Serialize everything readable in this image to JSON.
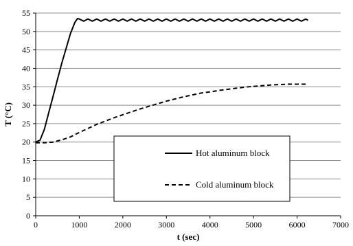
{
  "chart_data": {
    "type": "line",
    "title": "",
    "xlabel": "t (sec)",
    "ylabel": "T (°C)",
    "xlim": [
      0,
      7000
    ],
    "ylim": [
      0,
      55
    ],
    "xticks": [
      0,
      1000,
      2000,
      3000,
      4000,
      5000,
      6000,
      7000
    ],
    "yticks": [
      0,
      5,
      10,
      15,
      20,
      25,
      30,
      35,
      40,
      45,
      50,
      55
    ],
    "grid": "horizontal",
    "legend": "inside-center-bottom",
    "series": [
      {
        "name": "Hot aluminum block",
        "style": "solid",
        "color": "#000000",
        "x": [
          0,
          100,
          200,
          300,
          400,
          500,
          600,
          700,
          800,
          900,
          960,
          1000,
          1100,
          1200,
          1300,
          1400,
          1500,
          1600,
          1700,
          1800,
          1900,
          2000,
          2100,
          2200,
          2300,
          2400,
          2500,
          2600,
          2700,
          2800,
          2900,
          3000,
          3100,
          3200,
          3300,
          3400,
          3500,
          3600,
          3700,
          3800,
          3900,
          4000,
          4100,
          4200,
          4300,
          4400,
          4500,
          4600,
          4700,
          4800,
          4900,
          5000,
          5100,
          5200,
          5300,
          5400,
          5500,
          5600,
          5700,
          5800,
          5900,
          6000,
          6100,
          6200,
          6250
        ],
        "y": [
          20,
          20.5,
          23.5,
          28,
          32.5,
          37,
          41.5,
          45.5,
          49.5,
          52.5,
          53.5,
          53.4,
          52.8,
          53.4,
          52.8,
          53.4,
          52.8,
          53.4,
          52.8,
          53.4,
          52.8,
          53.4,
          52.8,
          53.4,
          52.8,
          53.4,
          52.8,
          53.4,
          52.8,
          53.4,
          52.8,
          53.4,
          52.8,
          53.4,
          52.8,
          53.4,
          52.8,
          53.4,
          52.8,
          53.4,
          52.8,
          53.4,
          52.8,
          53.4,
          52.8,
          53.4,
          52.8,
          53.4,
          52.8,
          53.4,
          52.8,
          53.4,
          52.8,
          53.4,
          52.8,
          53.4,
          52.8,
          53.4,
          52.8,
          53.4,
          52.8,
          53.4,
          52.8,
          53.4,
          53.0
        ]
      },
      {
        "name": "Cold aluminum block",
        "style": "dashed",
        "color": "#000000",
        "x": [
          0,
          200,
          400,
          600,
          800,
          1000,
          1200,
          1400,
          1600,
          1800,
          2000,
          2200,
          2400,
          2600,
          2800,
          3000,
          3200,
          3400,
          3600,
          3800,
          4000,
          4200,
          4400,
          4600,
          4800,
          5000,
          5200,
          5400,
          5600,
          5800,
          6000,
          6250
        ],
        "y": [
          19.8,
          19.8,
          20.0,
          20.6,
          21.4,
          22.6,
          23.7,
          24.8,
          25.7,
          26.6,
          27.4,
          28.2,
          29.0,
          29.7,
          30.4,
          31.1,
          31.7,
          32.3,
          32.8,
          33.3,
          33.6,
          34.0,
          34.3,
          34.6,
          34.9,
          35.1,
          35.3,
          35.5,
          35.6,
          35.7,
          35.7,
          35.7
        ]
      }
    ]
  }
}
